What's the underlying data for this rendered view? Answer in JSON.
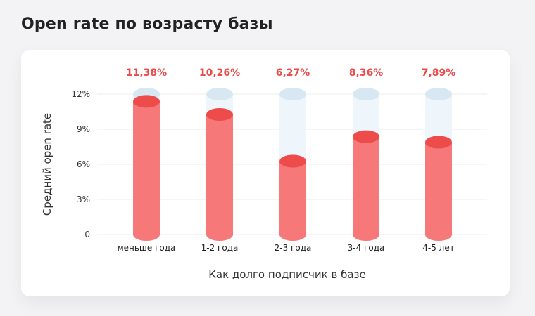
{
  "title": "Open rate по возрасту базы",
  "chart_data": {
    "type": "bar",
    "title": "Open rate по возрасту базы",
    "xlabel": "Как долго подписчик в базе",
    "ylabel": "Средний open rate",
    "categories": [
      "меньше года",
      "1-2 года",
      "2-3 года",
      "3-4 года",
      "4-5 лет"
    ],
    "values": [
      11.38,
      10.26,
      6.27,
      8.36,
      7.89
    ],
    "data_labels": [
      "11,38%",
      "10,26%",
      "6,27%",
      "8,36%",
      "7,89%"
    ],
    "ylim": [
      0,
      12
    ],
    "yticks": [
      0,
      3,
      6,
      9,
      12
    ],
    "ytick_labels": [
      "0",
      "3%",
      "6%",
      "9%",
      "12%"
    ],
    "grid": true,
    "legend": "none",
    "colors": {
      "bar_body": "#f77878",
      "bar_top": "#ee4b4b",
      "track_body": "#eef6fb",
      "track_top": "#d7e8f2",
      "label": "#ec4b4b",
      "grid": "#ececec"
    }
  }
}
